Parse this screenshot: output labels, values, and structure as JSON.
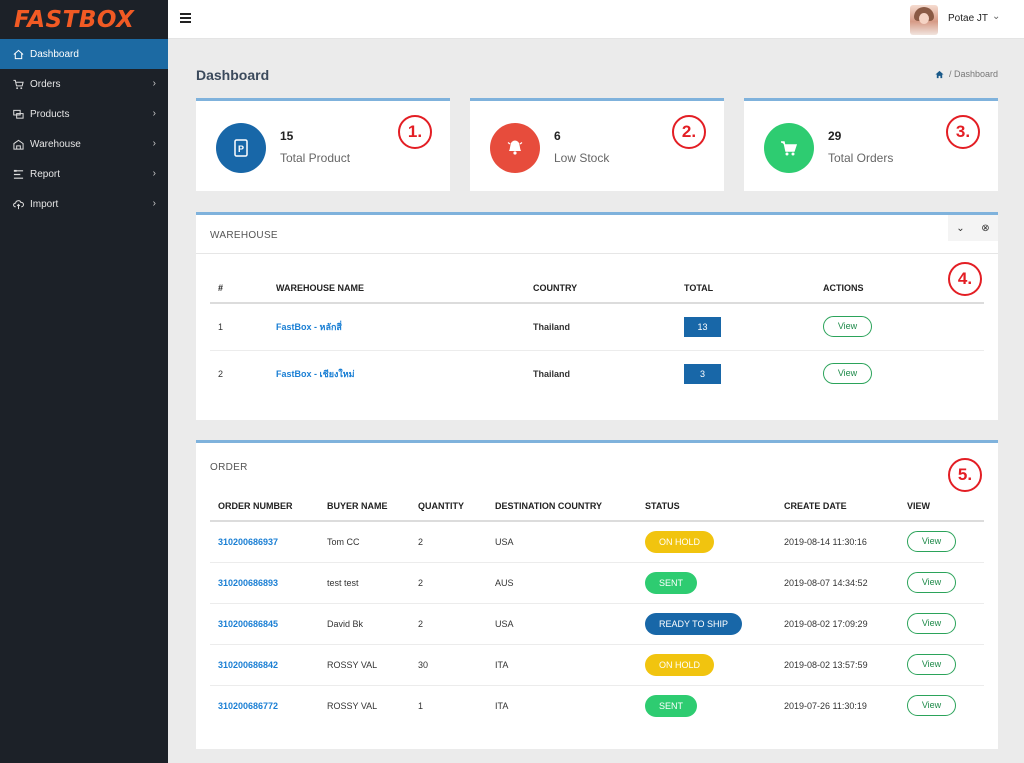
{
  "brand": {
    "part1": "FAST",
    "part2": "BOX"
  },
  "sidebar": {
    "items": [
      {
        "label": "Dashboard",
        "icon": "home-icon",
        "active": true,
        "chevron": ""
      },
      {
        "label": "Orders",
        "icon": "cart-icon",
        "active": false,
        "chevron": "›"
      },
      {
        "label": "Products",
        "icon": "products-icon",
        "active": false,
        "chevron": "›"
      },
      {
        "label": "Warehouse",
        "icon": "warehouse-icon",
        "active": false,
        "chevron": "›"
      },
      {
        "label": "Report",
        "icon": "report-icon",
        "active": false,
        "chevron": "›"
      },
      {
        "label": "Import",
        "icon": "cloud-upload-icon",
        "active": false,
        "chevron": "›"
      }
    ]
  },
  "header": {
    "user_name": "Potae JT",
    "user_chevron": "⌄"
  },
  "page": {
    "title": "Dashboard",
    "breadcrumb": "/ Dashboard"
  },
  "stats": [
    {
      "value": "15",
      "label": "Total Product",
      "color": "#1867a8",
      "icon": "parking-icon",
      "step": "1."
    },
    {
      "value": "6",
      "label": "Low Stock",
      "color": "#e74c3c",
      "icon": "bell-icon",
      "step": "2."
    },
    {
      "value": "29",
      "label": "Total Orders",
      "color": "#2ecc71",
      "icon": "cart-icon",
      "step": "3."
    }
  ],
  "warehouse": {
    "title": "WAREHOUSE",
    "step": "4.",
    "tools": {
      "collapse": "⌄",
      "close": "⊗"
    },
    "columns": [
      "#",
      "WAREHOUSE NAME",
      "COUNTRY",
      "TOTAL",
      "ACTIONS"
    ],
    "rows": [
      {
        "num": "1",
        "name": "FastBox - หลักสี่",
        "country": "Thailand",
        "total": "13",
        "action": "View"
      },
      {
        "num": "2",
        "name": "FastBox - เชียงใหม่",
        "country": "Thailand",
        "total": "3",
        "action": "View"
      }
    ]
  },
  "orders": {
    "title": "ORDER",
    "step": "5.",
    "columns": [
      "ORDER NUMBER",
      "BUYER NAME",
      "QUANTITY",
      "DESTINATION COUNTRY",
      "STATUS",
      "CREATE DATE",
      "VIEW"
    ],
    "rows": [
      {
        "number": "310200686937",
        "buyer": "Tom CC",
        "qty": "2",
        "country": "USA",
        "status": "ON HOLD",
        "status_color": "#f1c40f",
        "date": "2019-08-14 11:30:16",
        "view": "View"
      },
      {
        "number": "310200686893",
        "buyer": "test test",
        "qty": "2",
        "country": "AUS",
        "status": "SENT",
        "status_color": "#2ecc71",
        "date": "2019-08-07 14:34:52",
        "view": "View"
      },
      {
        "number": "310200686845",
        "buyer": "David Bk",
        "qty": "2",
        "country": "USA",
        "status": "READY TO SHIP",
        "status_color": "#1867a8",
        "date": "2019-08-02 17:09:29",
        "view": "View"
      },
      {
        "number": "310200686842",
        "buyer": "ROSSY VAL",
        "qty": "30",
        "country": "ITA",
        "status": "ON HOLD",
        "status_color": "#f1c40f",
        "date": "2019-08-02 13:57:59",
        "view": "View"
      },
      {
        "number": "310200686772",
        "buyer": "ROSSY VAL",
        "qty": "1",
        "country": "ITA",
        "status": "SENT",
        "status_color": "#2ecc71",
        "date": "2019-07-26 11:30:19",
        "view": "View"
      }
    ]
  }
}
